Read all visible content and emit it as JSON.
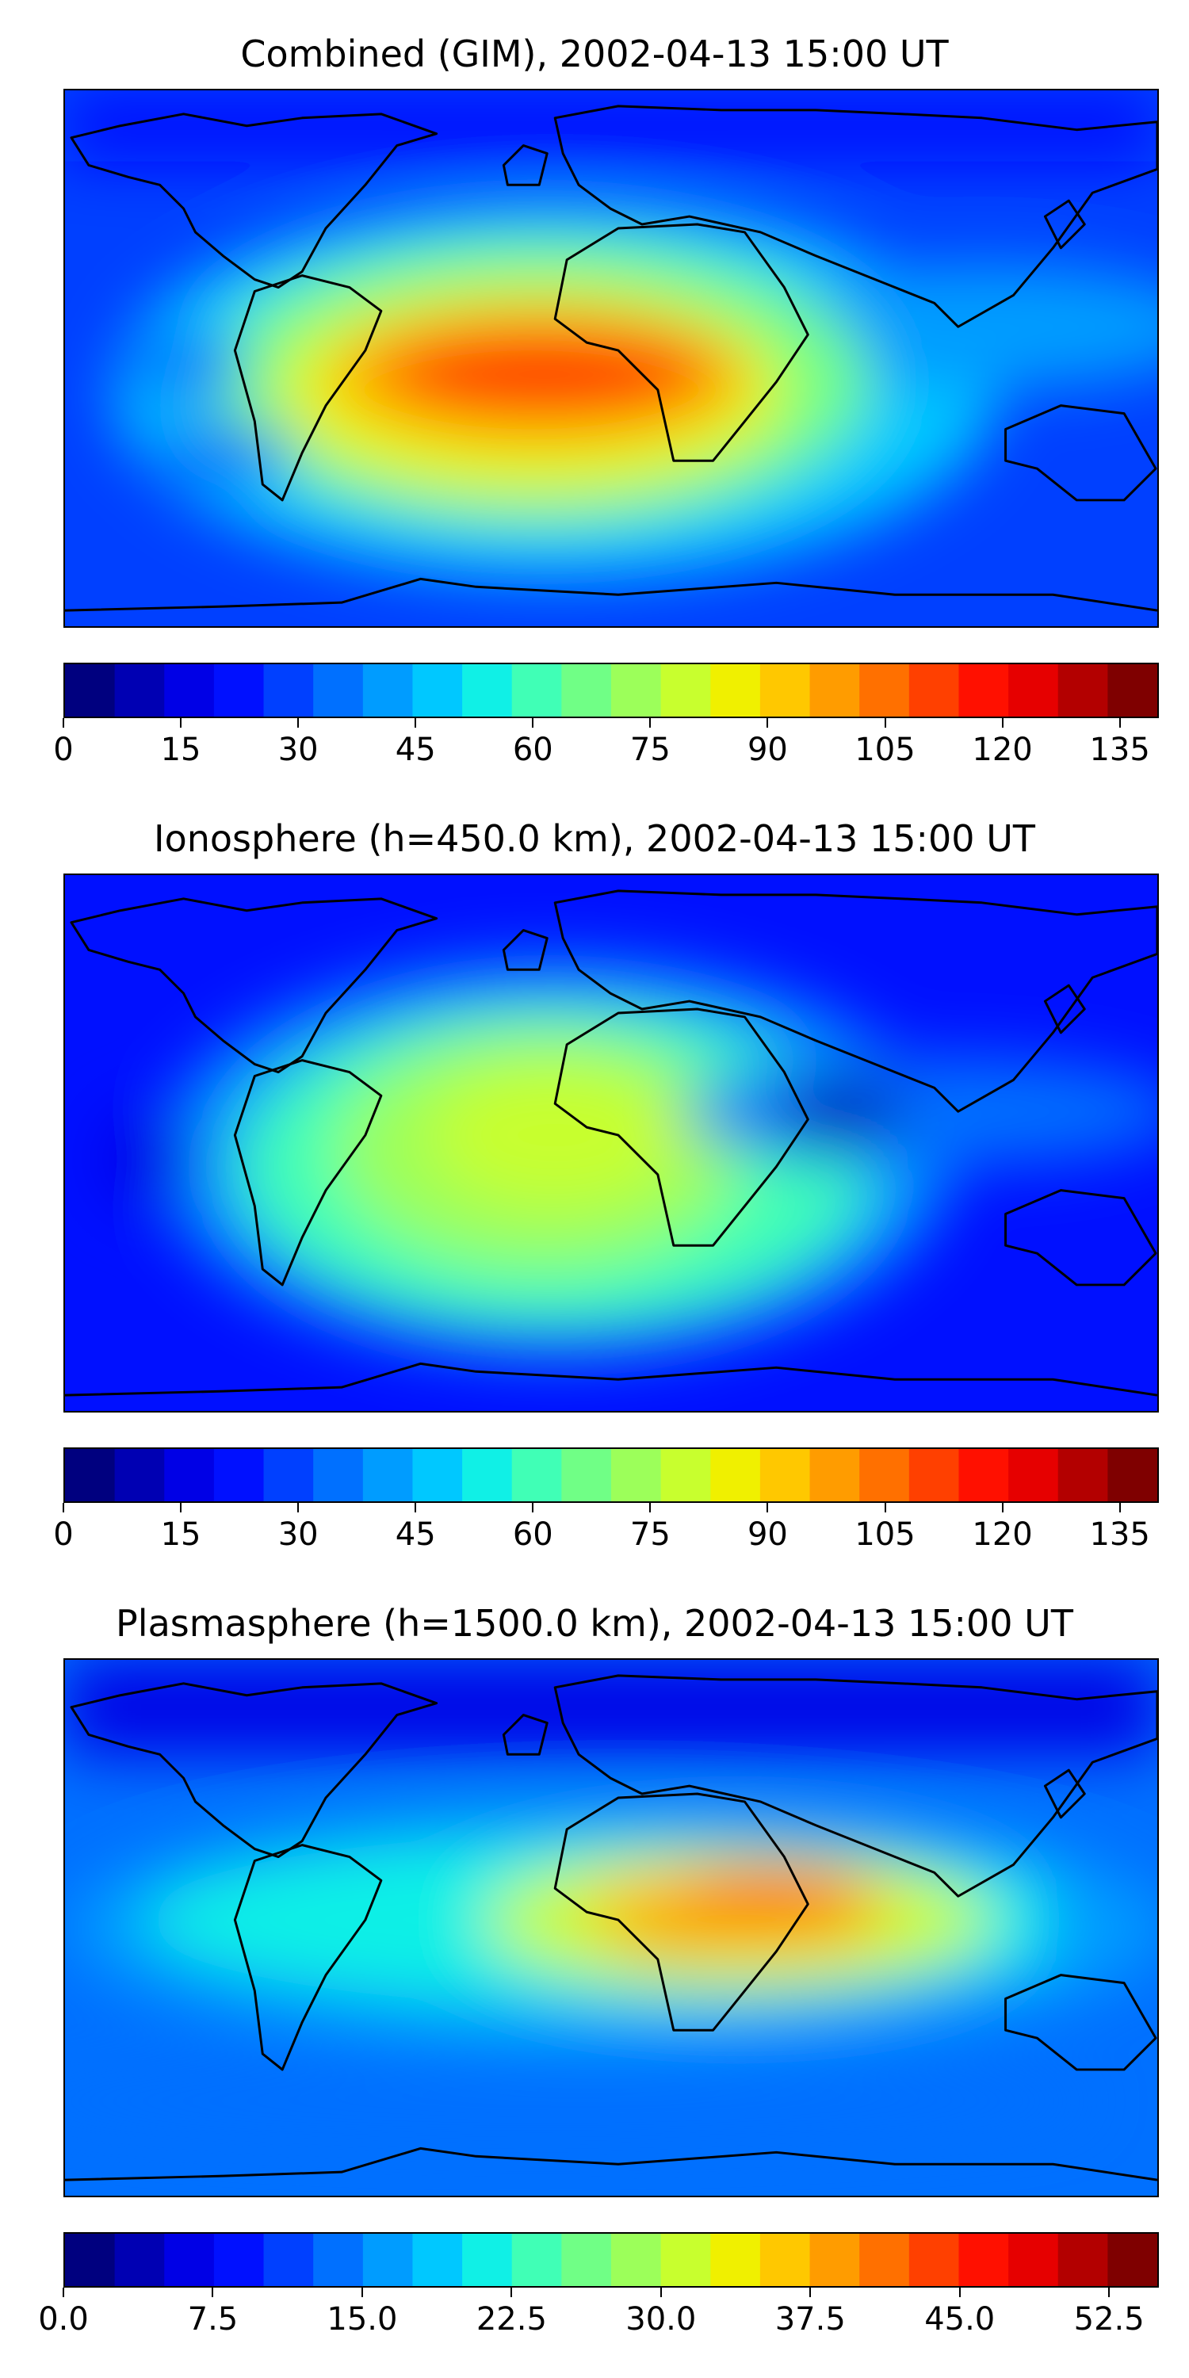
{
  "panels": [
    {
      "title": "Combined (GIM), 2002-04-13 15:00 UT",
      "variant": "combined",
      "colorbar": {
        "vmin": 0,
        "vmax": 140,
        "ticks": [
          "0",
          "15",
          "30",
          "45",
          "60",
          "75",
          "90",
          "105",
          "120",
          "135"
        ],
        "tick_values": [
          0,
          15,
          30,
          45,
          60,
          75,
          90,
          105,
          120,
          135
        ]
      }
    },
    {
      "title": "Ionosphere  (h=450.0 km), 2002-04-13 15:00 UT",
      "variant": "ionosphere",
      "colorbar": {
        "vmin": 0,
        "vmax": 140,
        "ticks": [
          "0",
          "15",
          "30",
          "45",
          "60",
          "75",
          "90",
          "105",
          "120",
          "135"
        ],
        "tick_values": [
          0,
          15,
          30,
          45,
          60,
          75,
          90,
          105,
          120,
          135
        ]
      }
    },
    {
      "title": "Plasmasphere (h=1500.0 km), 2002-04-13 15:00 UT",
      "variant": "plasmasphere",
      "colorbar": {
        "vmin": 0,
        "vmax": 55,
        "ticks": [
          "0.0",
          "7.5",
          "15.0",
          "22.5",
          "30.0",
          "37.5",
          "45.0",
          "52.5"
        ],
        "tick_values": [
          0,
          7.5,
          15,
          22.5,
          30,
          37.5,
          45,
          52.5
        ]
      }
    }
  ],
  "colormap": [
    "#00007f",
    "#0000b3",
    "#0000e6",
    "#0010ff",
    "#0040ff",
    "#0070ff",
    "#009cff",
    "#00c8ff",
    "#10f0e6",
    "#40ffb6",
    "#70ff86",
    "#9cff5a",
    "#c8ff2e",
    "#f0f000",
    "#ffc800",
    "#ff9c00",
    "#ff7000",
    "#ff4000",
    "#ff1000",
    "#e60000",
    "#b30000",
    "#7f0000"
  ]
}
